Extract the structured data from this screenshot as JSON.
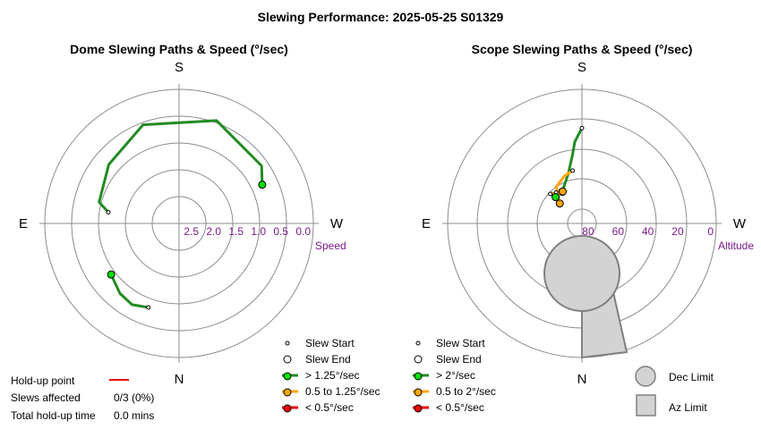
{
  "title": "Slewing Performance: 2025-05-25 S01329",
  "colors": {
    "fast": "#00dd00",
    "fast_line": "#228b22",
    "mid": "#ffa500",
    "slow": "#ee0000",
    "tick": "#7a1a8a",
    "limit_fill": "#d3d3d3"
  },
  "chart_data": [
    {
      "type": "scatter",
      "title": "Dome Slewing Paths & Speed (°/sec)",
      "cardinals": {
        "top": "S",
        "bottom": "N",
        "left": "E",
        "right": "W"
      },
      "radial_label": "Speed",
      "radial_ticks": [
        "2.5",
        "2.0",
        "1.5",
        "1.0",
        "0.5",
        "0.0"
      ],
      "radial_range": [
        3.0,
        0.0
      ],
      "slews": [
        {
          "category": "> 1.25°/sec",
          "path": [
            [
              99,
              1.4
            ],
            [
              105,
              1.15
            ],
            [
              130,
              0.95
            ],
            [
              160,
              0.65
            ],
            [
              200,
              0.55
            ],
            [
              235,
              0.75
            ],
            [
              245,
              0.95
            ]
          ]
        },
        {
          "category": "> 1.25°/sec",
          "path": [
            [
              20,
              1.0
            ],
            [
              30,
              0.9
            ],
            [
              40,
              0.95
            ],
            [
              53,
              1.1
            ]
          ]
        }
      ],
      "legend": [
        "Slew Start",
        "Slew End",
        "> 1.25°/sec",
        "0.5 to 1.25°/sec",
        "< 0.5°/sec"
      ]
    },
    {
      "type": "scatter",
      "title": "Scope Slewing Paths & Speed (°/sec)",
      "cardinals": {
        "top": "S",
        "bottom": "N",
        "left": "E",
        "right": "W"
      },
      "radial_label": "Altitude",
      "radial_ticks": [
        "80",
        "60",
        "40",
        "20",
        "0"
      ],
      "radial_range": [
        90,
        0
      ],
      "slews": [
        {
          "category": "> 2°/sec",
          "path": [
            [
              180,
              26
            ],
            [
              175,
              35
            ],
            [
              172,
              44
            ],
            [
              165,
              55
            ],
            [
              155,
              62
            ],
            [
              148,
              65
            ]
          ]
        },
        {
          "category": "0.5 to 2°/sec",
          "path": [
            [
              170,
              54
            ],
            [
              160,
              56
            ],
            [
              145,
              60
            ],
            [
              140,
              65
            ],
            [
              132,
              70
            ]
          ]
        },
        {
          "category": "0.5 to 2°/sec",
          "path": [
            [
              133,
              61
            ],
            [
              140,
              63
            ],
            [
              145,
              65
            ],
            [
              149,
              65
            ]
          ]
        },
        {
          "category": "> 2°/sec",
          "path": [
            [
              140,
              63
            ],
            [
              137,
              64
            ],
            [
              135,
              65
            ]
          ]
        }
      ],
      "legend": [
        "Slew Start",
        "Slew End",
        "> 2°/sec",
        "0.5 to 2°/sec",
        "< 0.5°/sec"
      ],
      "limits": {
        "dec": "Dec Limit",
        "az": "Az Limit"
      }
    }
  ],
  "holdup": {
    "point_label": "Hold-up point",
    "slews_label": "Slews affected",
    "slews_value": "0/3 (0%)",
    "time_label": "Total hold-up time",
    "time_value": "0.0 mins"
  }
}
